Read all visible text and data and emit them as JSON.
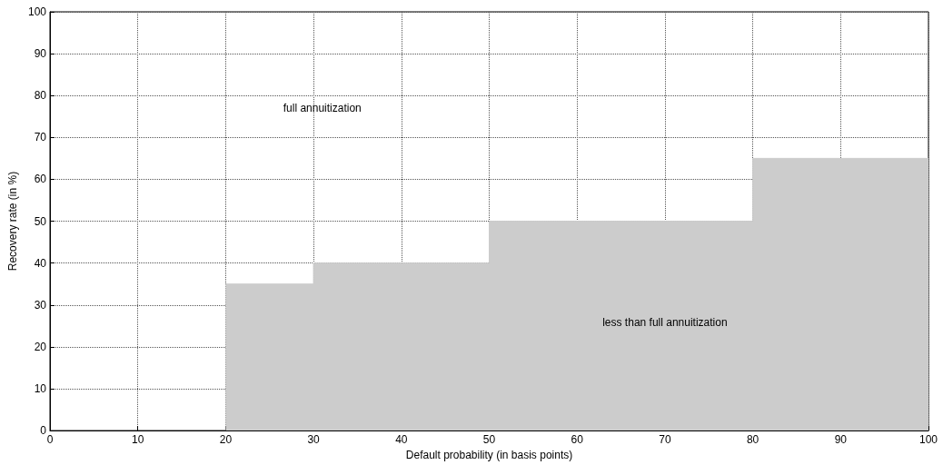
{
  "chart_data": {
    "type": "area",
    "xlabel": "Default probability (in basis points)",
    "ylabel": "Recovery rate (in %)",
    "x": [
      20,
      30,
      30,
      50,
      50,
      80,
      80,
      100
    ],
    "series": [
      {
        "color": "#cccccc",
        "values": [
          35,
          35,
          40,
          40,
          50,
          50,
          65,
          65
        ]
      }
    ],
    "xlim": [
      0,
      100
    ],
    "xticks": [
      0,
      10,
      20,
      30,
      40,
      50,
      60,
      70,
      80,
      90,
      100
    ],
    "ylim": [
      0,
      100
    ],
    "yticks": [
      0,
      10,
      20,
      30,
      40,
      50,
      60,
      70,
      80,
      90,
      100
    ],
    "grid": true,
    "line_style": "solid",
    "marker": "none",
    "annotations": [
      "full annuitization",
      "less than full annuitization"
    ]
  }
}
